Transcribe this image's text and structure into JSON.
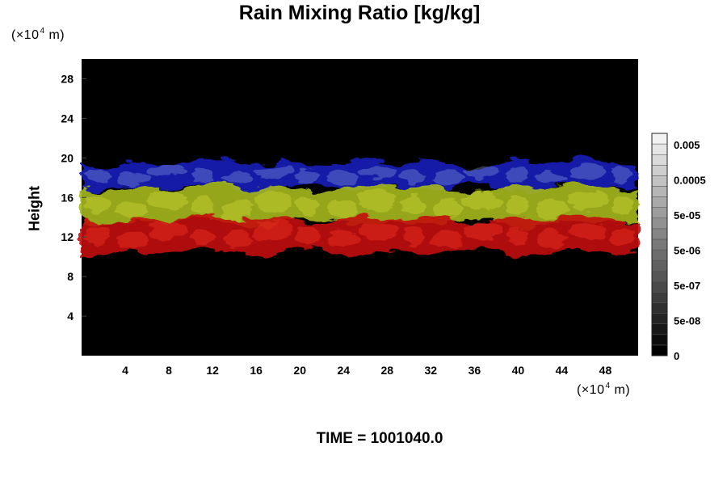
{
  "chart_data": {
    "type": "heatmap",
    "title": "Rain Mixing Ratio [kg/kg]",
    "ylabel": "Height",
    "xlabel": "",
    "y_unit_prefix": "(×10",
    "y_unit_exp": "4",
    "y_unit_suffix": " m)",
    "x_unit_prefix": "(×10",
    "x_unit_exp": "4",
    "x_unit_suffix": " m)",
    "xlim": [
      0,
      51
    ],
    "ylim": [
      0,
      30
    ],
    "x_ticks": [
      "4",
      "8",
      "12",
      "16",
      "20",
      "24",
      "28",
      "32",
      "36",
      "40",
      "44",
      "48"
    ],
    "y_ticks": [
      "28",
      "24",
      "20",
      "16",
      "12",
      "8",
      "4"
    ],
    "plot_background": "#000000",
    "colorbar": {
      "labels": [
        "0.005",
        "0.0005",
        "5e-05",
        "5e-06",
        "5e-07",
        "5e-08",
        "0"
      ],
      "levels": 21,
      "color_low": "#000000",
      "color_high": "#f2f2f2"
    },
    "bands": [
      {
        "name": "blue",
        "color": "#1a20b8",
        "highlight": "#8a9ae0",
        "y_bottom": 17.0,
        "y_top": 19.5
      },
      {
        "name": "yellow-green",
        "color": "#a6b81c",
        "highlight": "#d8e03a",
        "y_bottom": 13.5,
        "y_top": 17.0
      },
      {
        "name": "red",
        "color": "#c21010",
        "highlight": "#ff3a2a",
        "y_bottom": 10.5,
        "y_top": 13.8
      }
    ],
    "time_label": "TIME = 1001040.0"
  }
}
